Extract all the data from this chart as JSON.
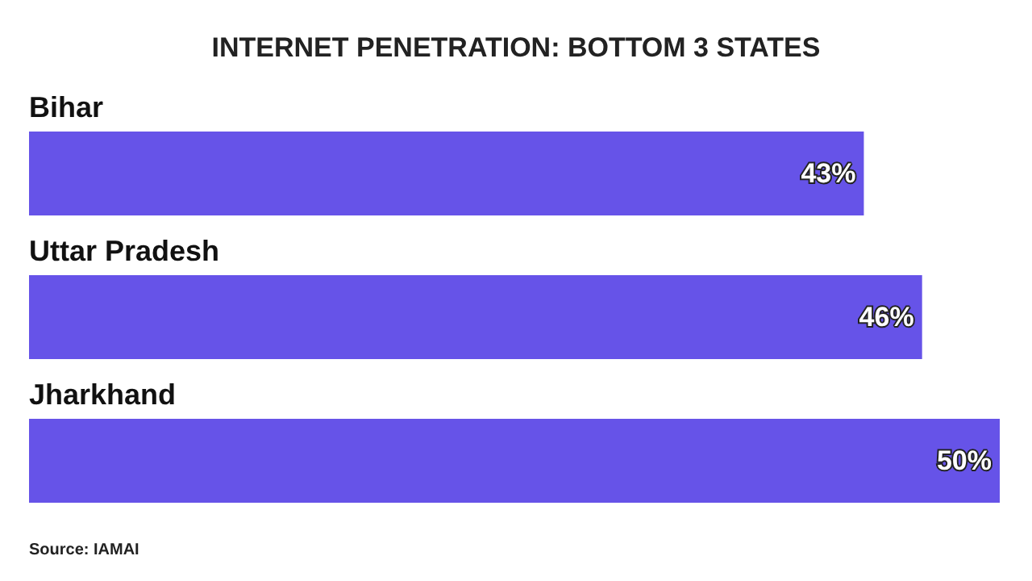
{
  "chart_data": {
    "type": "bar",
    "orientation": "horizontal",
    "title": "INTERNET PENETRATION: BOTTOM 3 STATES",
    "categories": [
      "Bihar",
      "Uttar Pradesh",
      "Jharkhand"
    ],
    "values": [
      43,
      46,
      50
    ],
    "value_labels": [
      "43%",
      "46%",
      "50%"
    ],
    "color": "#6653e8",
    "annotations": [
      "Source: IAMAI"
    ]
  }
}
